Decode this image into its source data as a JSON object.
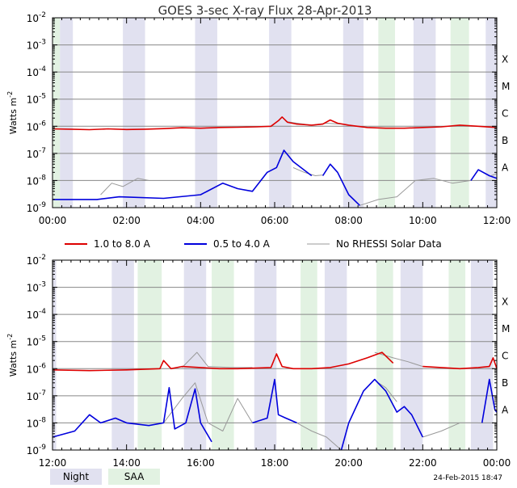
{
  "title": "GOES 3-sec X-ray Flux   28-Apr-2013",
  "footer_date": "24-Feb-2015 18:47",
  "colors": {
    "long": "#dd0000",
    "short": "#0000dd",
    "no_rhessi": "#999999",
    "night": "#e1e1f0",
    "saa": "#e2f2e2",
    "grid": "#888888"
  },
  "legend": {
    "long": "1.0 to 8.0 A",
    "short": "0.5 to 4.0 A",
    "no_rhessi": "No RHESSI Solar Data"
  },
  "bottom_legend": {
    "night": "Night",
    "saa": "SAA"
  },
  "chart_data": [
    {
      "type": "line",
      "ylabel": "Watts m",
      "ylabel_sup": "-2",
      "yscale": "log",
      "ylim": [
        1e-09,
        0.01
      ],
      "xlim_hours": [
        0,
        12
      ],
      "x_ticks": [
        "00:00",
        "02:00",
        "04:00",
        "06:00",
        "08:00",
        "10:00",
        "12:00"
      ],
      "y_ticks": [
        {
          "base": "10",
          "exp": "-9"
        },
        {
          "base": "10",
          "exp": "-8"
        },
        {
          "base": "10",
          "exp": "-7"
        },
        {
          "base": "10",
          "exp": "-6"
        },
        {
          "base": "10",
          "exp": "-5"
        },
        {
          "base": "10",
          "exp": "-4"
        },
        {
          "base": "10",
          "exp": "-3"
        },
        {
          "base": "10",
          "exp": "-2"
        }
      ],
      "flare_classes": [
        "A",
        "B",
        "C",
        "M",
        "X"
      ],
      "night_bands_hours": [
        [
          0.2,
          0.55
        ],
        [
          1.9,
          2.5
        ],
        [
          3.85,
          4.45
        ],
        [
          5.85,
          6.45
        ],
        [
          7.85,
          8.4
        ],
        [
          9.75,
          10.35
        ],
        [
          11.7,
          12.0
        ]
      ],
      "saa_bands_hours": [
        [
          0.0,
          0.2
        ],
        [
          8.8,
          9.25
        ],
        [
          10.75,
          11.25
        ],
        [
          12.0,
          12.0
        ]
      ],
      "long_segments": [
        {
          "x": [
            0,
            0.5,
            1,
            1.5,
            2,
            2.5,
            3,
            3.5,
            4,
            4.5,
            5,
            5.5,
            5.9,
            6.1,
            6.2,
            6.35,
            6.6,
            7.0,
            7.3,
            7.5,
            7.7,
            8,
            8.5,
            9,
            9.5,
            10,
            10.5,
            11,
            11.5,
            12
          ],
          "y": [
            8e-07,
            7.8e-07,
            7.5e-07,
            8e-07,
            7.6e-07,
            7.8e-07,
            8.2e-07,
            8.8e-07,
            8.5e-07,
            9e-07,
            9.2e-07,
            9.5e-07,
            1e-06,
            1.6e-06,
            2.2e-06,
            1.4e-06,
            1.2e-06,
            1.1e-06,
            1.2e-06,
            1.7e-06,
            1.3e-06,
            1.1e-06,
            9e-07,
            8.5e-07,
            8.5e-07,
            9e-07,
            9.5e-07,
            1.1e-06,
            1e-06,
            9e-07
          ]
        }
      ],
      "short_segments": [
        {
          "x": [
            0,
            1.2,
            1.8,
            3.0,
            4.0,
            4.6,
            5.0,
            5.4,
            5.8,
            6.05,
            6.25,
            6.5,
            7.0
          ],
          "y": [
            2e-09,
            2e-09,
            2.5e-09,
            2.2e-09,
            3e-09,
            8e-09,
            5e-09,
            4e-09,
            2e-08,
            3e-08,
            1.3e-07,
            5e-08,
            1.5e-08
          ]
        },
        {
          "x": [
            7.3,
            7.5,
            7.7,
            8.0,
            8.3
          ],
          "y": [
            1.5e-08,
            4e-08,
            2e-08,
            3e-09,
            1.2e-09
          ]
        },
        {
          "x": [
            11.3,
            11.5,
            11.8,
            12.0
          ],
          "y": [
            1e-08,
            2.5e-08,
            1.5e-08,
            1.2e-08
          ]
        }
      ],
      "no_rhessi_long_segments": [
        {
          "x": [
            6.3,
            6.6,
            7.0,
            7.4,
            7.8,
            8.2
          ],
          "y": [
            1.5e-06,
            1.3e-06,
            1.1e-06,
            1.3e-06,
            1.2e-06,
            1e-06
          ]
        }
      ],
      "no_rhessi_short_segments": [
        {
          "x": [
            1.3,
            1.6,
            1.9,
            2.3,
            2.6
          ],
          "y": [
            3e-09,
            8e-09,
            6e-09,
            1.2e-08,
            1e-08
          ]
        },
        {
          "x": [
            6.5,
            6.8,
            7.1,
            7.3
          ],
          "y": [
            3e-08,
            2e-08,
            1.5e-08,
            1.6e-08
          ]
        },
        {
          "x": [
            8.3,
            8.8,
            9.3,
            9.8,
            10.3,
            10.8,
            11.3
          ],
          "y": [
            1.2e-09,
            2e-09,
            2.5e-09,
            1e-08,
            1.2e-08,
            8e-09,
            1e-08
          ]
        },
        {
          "x": [
            11.85,
            12.0
          ],
          "y": [
            1.5e-08,
            1.8e-08
          ]
        }
      ]
    },
    {
      "type": "line",
      "ylabel": "Watts m",
      "ylabel_sup": "-2",
      "yscale": "log",
      "ylim": [
        1e-09,
        0.01
      ],
      "xlim_hours": [
        12,
        24
      ],
      "x_ticks": [
        "12:00",
        "14:00",
        "16:00",
        "18:00",
        "20:00",
        "22:00",
        "00:00"
      ],
      "y_ticks": [
        {
          "base": "10",
          "exp": "-9"
        },
        {
          "base": "10",
          "exp": "-8"
        },
        {
          "base": "10",
          "exp": "-7"
        },
        {
          "base": "10",
          "exp": "-6"
        },
        {
          "base": "10",
          "exp": "-5"
        },
        {
          "base": "10",
          "exp": "-4"
        },
        {
          "base": "10",
          "exp": "-3"
        },
        {
          "base": "10",
          "exp": "-2"
        }
      ],
      "flare_classes": [
        "A",
        "B",
        "C",
        "M",
        "X"
      ],
      "night_bands_hours": [
        [
          12.0,
          12.1
        ],
        [
          13.6,
          14.2
        ],
        [
          15.55,
          16.15
        ],
        [
          17.45,
          18.05
        ],
        [
          19.35,
          19.95
        ],
        [
          21.4,
          22.0
        ],
        [
          23.3,
          23.9
        ]
      ],
      "saa_bands_hours": [
        [
          14.3,
          14.95
        ],
        [
          16.3,
          16.9
        ],
        [
          18.7,
          19.15
        ],
        [
          20.75,
          21.2
        ],
        [
          22.7,
          23.15
        ]
      ],
      "long_segments": [
        {
          "x": [
            12,
            13,
            14,
            14.9,
            15.0,
            15.2,
            15.5,
            16.0,
            16.5,
            17.0,
            17.9,
            18.05,
            18.2,
            18.5,
            19.0,
            19.5,
            20.0,
            20.5,
            20.9,
            21.2
          ],
          "y": [
            9e-07,
            8.5e-07,
            9e-07,
            1e-06,
            2e-06,
            1e-06,
            1.2e-06,
            1.1e-06,
            1e-06,
            1e-06,
            1.1e-06,
            3.5e-06,
            1.2e-06,
            1e-06,
            1e-06,
            1.1e-06,
            1.5e-06,
            2.5e-06,
            4e-06,
            1.6e-06
          ]
        },
        {
          "x": [
            22.0,
            22.5,
            23.0,
            23.5,
            23.8,
            23.9,
            24.0
          ],
          "y": [
            1.2e-06,
            1.1e-06,
            1e-06,
            1.1e-06,
            1.2e-06,
            2.5e-06,
            1e-06
          ]
        }
      ],
      "short_segments": [
        {
          "x": [
            12,
            12.6,
            13.0,
            13.3,
            13.7,
            14.0,
            14.6,
            15.0,
            15.15,
            15.3,
            15.6,
            15.85,
            16.0,
            16.3
          ],
          "y": [
            3e-09,
            5e-09,
            2e-08,
            1e-08,
            1.5e-08,
            1e-08,
            8e-09,
            1e-08,
            2e-07,
            6e-09,
            1e-08,
            1.8e-07,
            1e-08,
            2e-09
          ]
        },
        {
          "x": [
            17.4,
            17.8,
            18.0,
            18.1,
            18.3,
            18.6
          ],
          "y": [
            1e-08,
            1.5e-08,
            4e-07,
            2e-08,
            1.5e-08,
            1e-08
          ]
        },
        {
          "x": [
            19.8,
            20.0,
            20.4,
            20.7,
            21.0,
            21.3,
            21.5,
            21.7,
            22.0
          ],
          "y": [
            1e-09,
            1e-08,
            1.5e-07,
            4e-07,
            1.5e-07,
            2.5e-08,
            4e-08,
            2e-08,
            3e-09
          ]
        },
        {
          "x": [
            23.6,
            23.8,
            23.95,
            24.0
          ],
          "y": [
            1e-08,
            4e-07,
            3e-08,
            2.5e-08
          ]
        }
      ],
      "no_rhessi_long_segments": [
        {
          "x": [
            15.5,
            15.9,
            16.2,
            16.8,
            17.4
          ],
          "y": [
            1.1e-06,
            4e-06,
            1.2e-06,
            1.1e-06,
            1.1e-06
          ]
        },
        {
          "x": [
            20.7,
            21.2,
            21.6,
            22.0
          ],
          "y": [
            4e-06,
            2.5e-06,
            1.8e-06,
            1.2e-06
          ]
        }
      ],
      "no_rhessi_short_segments": [
        {
          "x": [
            14.6,
            15.0,
            15.5,
            15.85,
            16.2,
            16.6,
            17.0,
            17.4
          ],
          "y": [
            8e-09,
            1e-08,
            8e-08,
            3e-07,
            1e-08,
            5e-09,
            8e-08,
            1e-08
          ]
        },
        {
          "x": [
            18.6,
            19.0,
            19.4,
            19.8
          ],
          "y": [
            1e-08,
            5e-09,
            3e-09,
            1e-09
          ]
        },
        {
          "x": [
            20.8,
            21.0,
            21.3
          ],
          "y": [
            3e-07,
            2e-07,
            6e-08
          ]
        },
        {
          "x": [
            22.0,
            22.5,
            23.0,
            23.5
          ],
          "y": [
            3e-09,
            5e-09,
            1e-08,
            1e-08
          ]
        }
      ]
    }
  ]
}
